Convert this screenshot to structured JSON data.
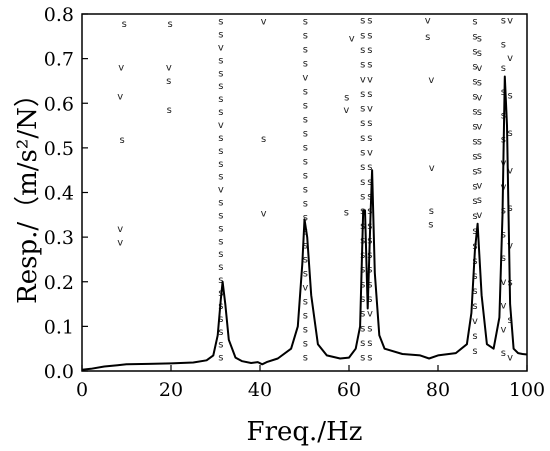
{
  "chart_data": {
    "type": "line",
    "xlabel": "Freq./Hz",
    "ylabel": "Resp./（m/s²/N）",
    "xlim": [
      0,
      100
    ],
    "ylim": [
      0,
      0.8
    ],
    "xticks": [
      "0",
      "20",
      "40",
      "60",
      "80",
      "100"
    ],
    "yticks": [
      "0.0",
      "0.1",
      "0.2",
      "0.3",
      "0.4",
      "0.5",
      "0.6",
      "0.7",
      "0.8"
    ],
    "grid": false,
    "legend": "none",
    "line_color": "#000000",
    "series": [
      {
        "x": [
          0,
          2,
          5,
          8,
          10,
          15,
          20,
          25,
          28,
          29.5,
          30.5,
          31.2,
          31.6,
          32.2,
          33,
          34.5,
          36,
          38,
          39.5,
          40.5,
          41.5,
          44,
          47,
          48.5,
          49.5,
          50,
          50.6,
          51.5,
          53,
          55,
          58,
          60,
          61.5,
          62.5,
          63.2,
          63.6,
          64.2,
          64.8,
          65.2,
          65.8,
          66.8,
          68,
          72,
          76,
          78,
          80,
          84,
          86.5,
          87.5,
          88.3,
          88.9,
          89.8,
          91,
          92.5,
          93.8,
          94.5,
          95,
          95.5,
          96.2,
          97,
          98,
          99,
          100
        ],
        "y": [
          0.003,
          0.005,
          0.01,
          0.013,
          0.015,
          0.016,
          0.017,
          0.019,
          0.024,
          0.035,
          0.08,
          0.16,
          0.2,
          0.15,
          0.07,
          0.03,
          0.022,
          0.018,
          0.02,
          0.015,
          0.02,
          0.028,
          0.05,
          0.1,
          0.24,
          0.34,
          0.3,
          0.17,
          0.06,
          0.035,
          0.028,
          0.03,
          0.05,
          0.1,
          0.36,
          0.36,
          0.14,
          0.34,
          0.45,
          0.22,
          0.08,
          0.05,
          0.038,
          0.035,
          0.028,
          0.035,
          0.04,
          0.06,
          0.13,
          0.27,
          0.33,
          0.17,
          0.06,
          0.05,
          0.12,
          0.35,
          0.66,
          0.55,
          0.15,
          0.05,
          0.04,
          0.038,
          0.037
        ]
      }
    ],
    "markers": [
      {
        "t": "s",
        "x": 9.5,
        "y": 0.778
      },
      {
        "t": "v",
        "x": 8.8,
        "y": 0.68
      },
      {
        "t": "v",
        "x": 8.6,
        "y": 0.615
      },
      {
        "t": "s",
        "x": 9,
        "y": 0.518
      },
      {
        "t": "v",
        "x": 8.6,
        "y": 0.318
      },
      {
        "t": "v",
        "x": 8.6,
        "y": 0.288
      },
      {
        "t": "s",
        "x": 19.8,
        "y": 0.778
      },
      {
        "t": "v",
        "x": 19.5,
        "y": 0.68
      },
      {
        "t": "s",
        "x": 19.5,
        "y": 0.65
      },
      {
        "t": "s",
        "x": 19.6,
        "y": 0.585
      },
      {
        "t": "v",
        "x": 40.8,
        "y": 0.783
      },
      {
        "t": "s",
        "x": 40.8,
        "y": 0.52
      },
      {
        "t": "v",
        "x": 40.8,
        "y": 0.353
      },
      {
        "t": "v",
        "x": 60.6,
        "y": 0.745
      },
      {
        "t": "s",
        "x": 59.5,
        "y": 0.613
      },
      {
        "t": "v",
        "x": 59.4,
        "y": 0.585
      },
      {
        "t": "s",
        "x": 59.4,
        "y": 0.355
      },
      {
        "t": "v",
        "x": 77.7,
        "y": 0.785
      },
      {
        "t": "s",
        "x": 77.7,
        "y": 0.748
      },
      {
        "t": "v",
        "x": 78.5,
        "y": 0.652
      },
      {
        "t": "v",
        "x": 78.6,
        "y": 0.455
      },
      {
        "t": "s",
        "x": 78.5,
        "y": 0.358
      },
      {
        "t": "s",
        "x": 78.4,
        "y": 0.328
      }
    ],
    "marker_columns": [
      {
        "x": 31.2,
        "pattern": "ssvsssssvssssvsssssssssssss",
        "top": 0.783,
        "bottom": 0.03
      },
      {
        "x": 50.2,
        "pattern": "ssssvssssssssssssssvsssss",
        "top": 0.783,
        "bottom": 0.03
      },
      {
        "x": 63.1,
        "pattern": "ssssvsssssssssssssssssss",
        "top": 0.785,
        "bottom": 0.03
      },
      {
        "x": 64.7,
        "pattern": "ssssvsvssvssssssssssvsss",
        "top": 0.785,
        "bottom": 0.03
      },
      {
        "x": 88.3,
        "pattern": "ssssssssssssssssssssvss",
        "top": 0.783,
        "bottom": 0.045
      },
      {
        "x": 89.3,
        "pattern": "ssvsvsvsssvsv",
        "top": 0.745,
        "bottom": 0.35
      },
      {
        "x": 94.7,
        "pattern": "ssssssvvsssvvvs",
        "top": 0.785,
        "bottom": 0.04
      },
      {
        "x": 96.2,
        "pattern": "vvssvsvssv",
        "top": 0.785,
        "bottom": 0.03
      }
    ]
  }
}
